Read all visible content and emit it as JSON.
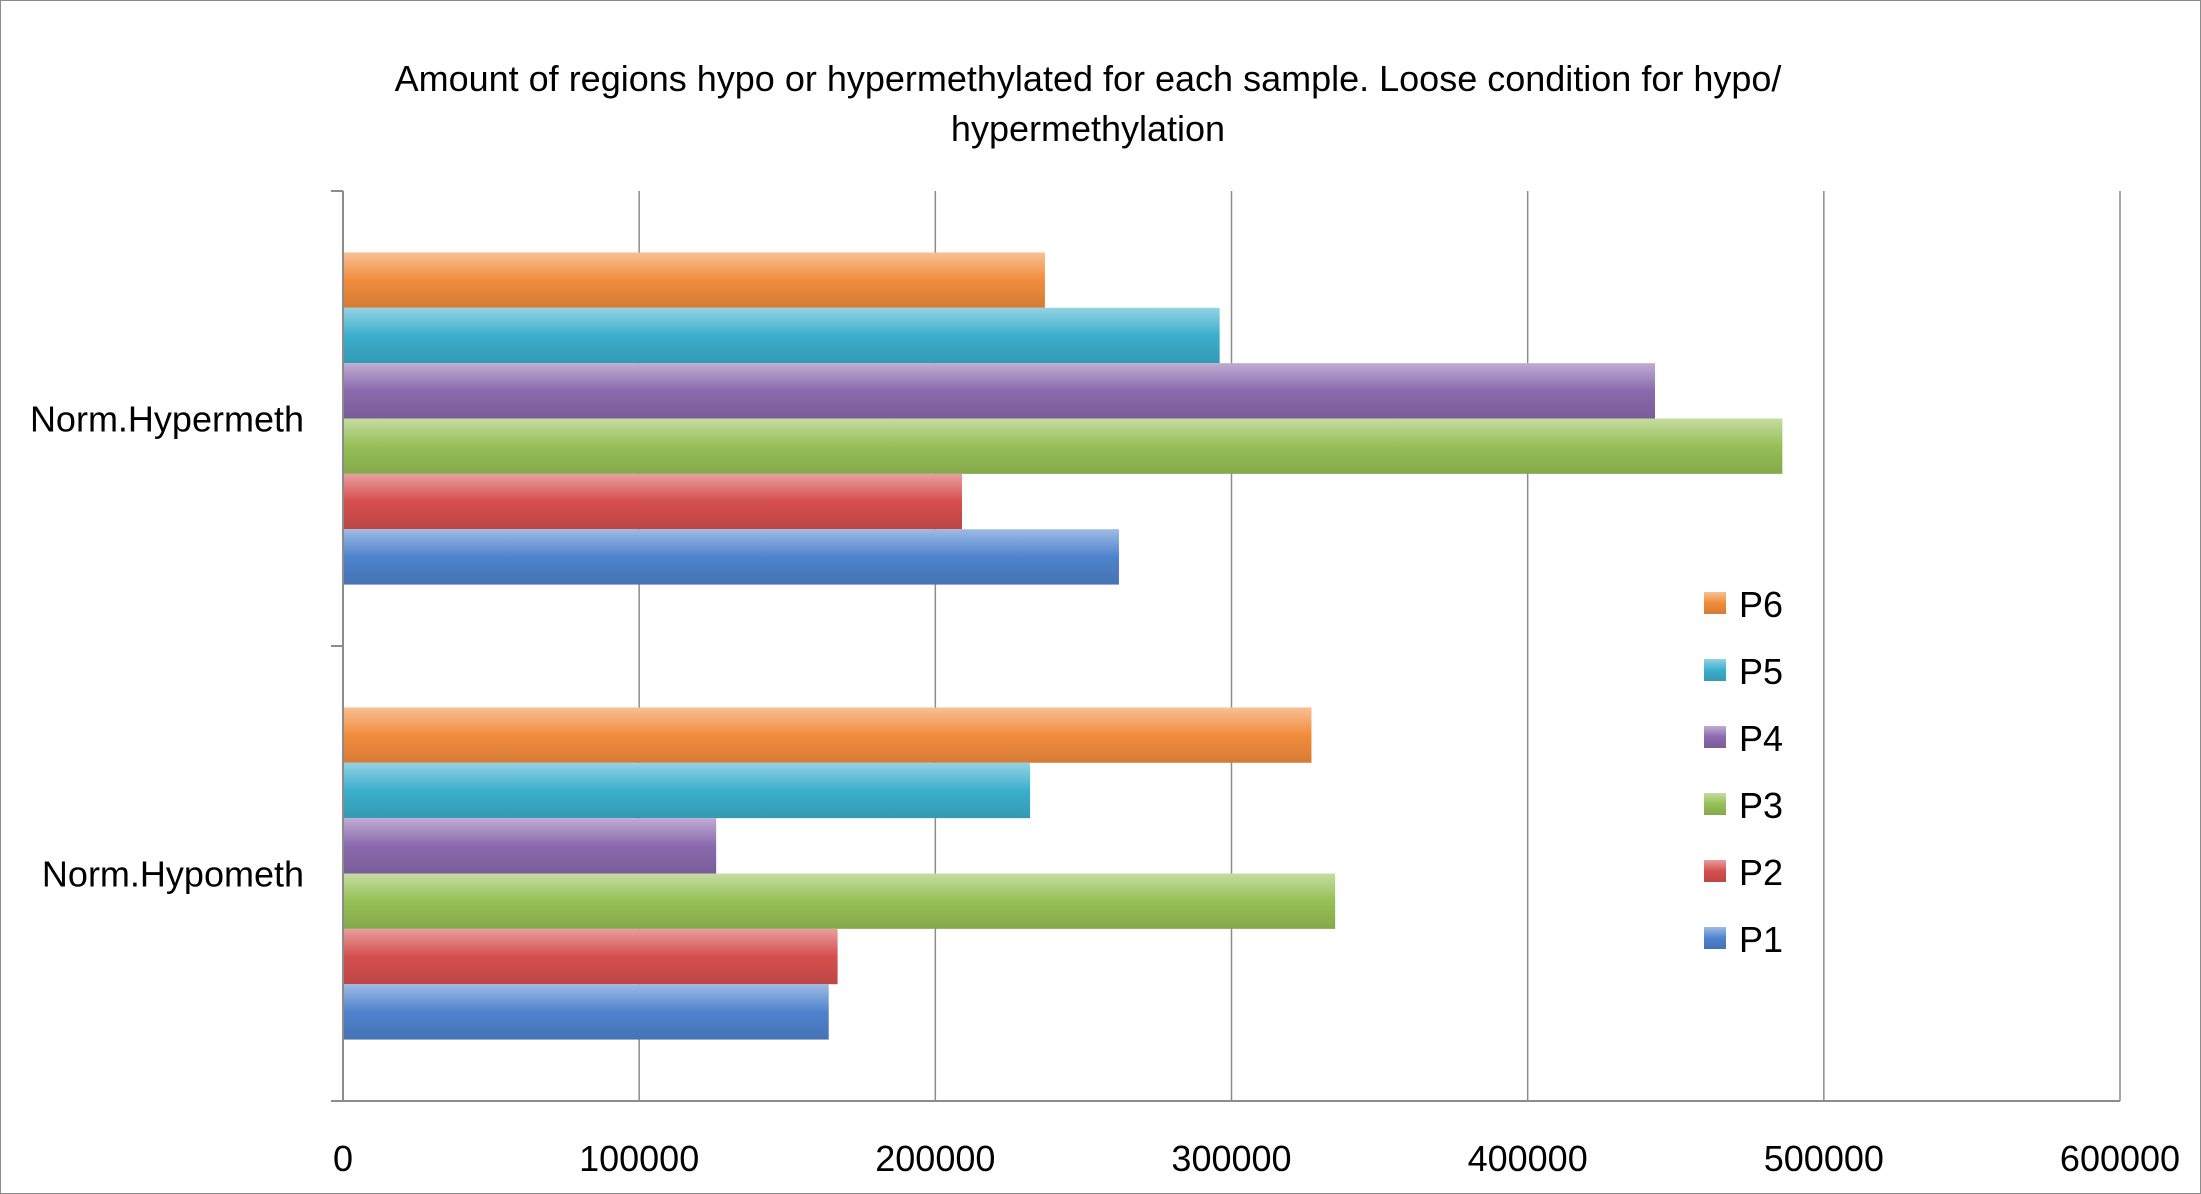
{
  "chart_data": {
    "type": "bar",
    "orientation": "horizontal",
    "title_lines": [
      "Amount of regions hypo or hypermethylated for each sample. Loose condition for hypo/",
      "hypermethylation"
    ],
    "categories": [
      "Norm.Hypermeth",
      "Norm.Hypometh"
    ],
    "series": [
      {
        "name": "P6",
        "color": "#F28C3C",
        "values": [
          237000,
          327000
        ]
      },
      {
        "name": "P5",
        "color": "#3BAFCC",
        "values": [
          296000,
          232000
        ]
      },
      {
        "name": "P4",
        "color": "#8A6AAE",
        "values": [
          443000,
          126000
        ]
      },
      {
        "name": "P3",
        "color": "#96C055",
        "values": [
          486000,
          335000
        ]
      },
      {
        "name": "P2",
        "color": "#D64F4F",
        "values": [
          209000,
          167000
        ]
      },
      {
        "name": "P1",
        "color": "#4E83CD",
        "values": [
          262000,
          164000
        ]
      }
    ],
    "xlim": [
      0,
      600000
    ],
    "xticks": [
      "0",
      "100000",
      "200000",
      "300000",
      "400000",
      "500000",
      "600000"
    ],
    "xlabel": "",
    "ylabel": "",
    "grid": "vertical major gridlines",
    "legend_position": "right"
  }
}
